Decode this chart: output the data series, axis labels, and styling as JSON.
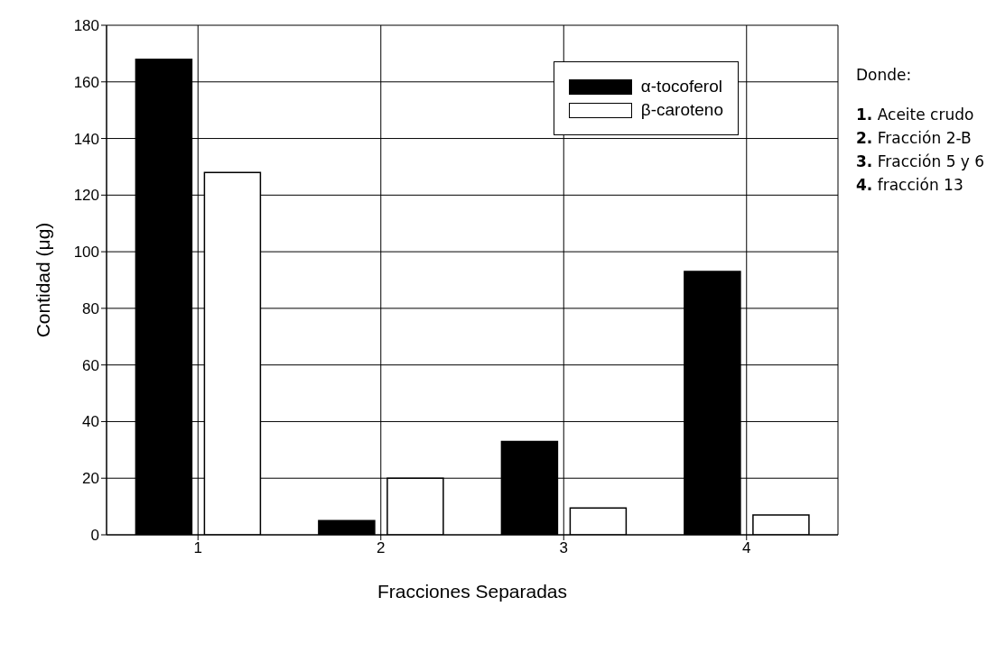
{
  "chart_data": {
    "type": "bar",
    "xlabel": "Fracciones Separadas",
    "ylabel": "Contidad (μg)",
    "categories": [
      "1",
      "2",
      "3",
      "4"
    ],
    "series": [
      {
        "name": "α-tocoferol",
        "color": "#000000",
        "values": [
          168,
          5,
          33,
          93
        ]
      },
      {
        "name": "β-caroteno",
        "color": "#ffffff",
        "values": [
          128,
          20,
          9.5,
          7
        ]
      }
    ],
    "ylim": [
      0,
      180
    ],
    "yticks": [
      0,
      20,
      40,
      60,
      80,
      100,
      120,
      140,
      160,
      180
    ],
    "grid": true,
    "legend": "top right",
    "annotations": [
      "Donde:",
      "1. Aceite crudo",
      "2. Fracción 2-B",
      "3. Fracción 5 y 6",
      "4. fracción 13"
    ]
  }
}
